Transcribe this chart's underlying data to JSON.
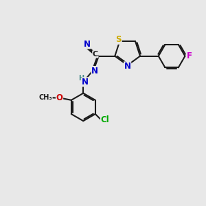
{
  "bg_color": "#e8e8e8",
  "bond_color": "#1a1a1a",
  "bond_width": 1.5,
  "dbo": 0.06,
  "atom_colors": {
    "S": "#ccaa00",
    "N": "#0000cc",
    "F": "#cc00cc",
    "Cl": "#00aa00",
    "O": "#cc0000",
    "C": "#1a1a1a",
    "H": "#448888"
  },
  "fs": 8.5
}
